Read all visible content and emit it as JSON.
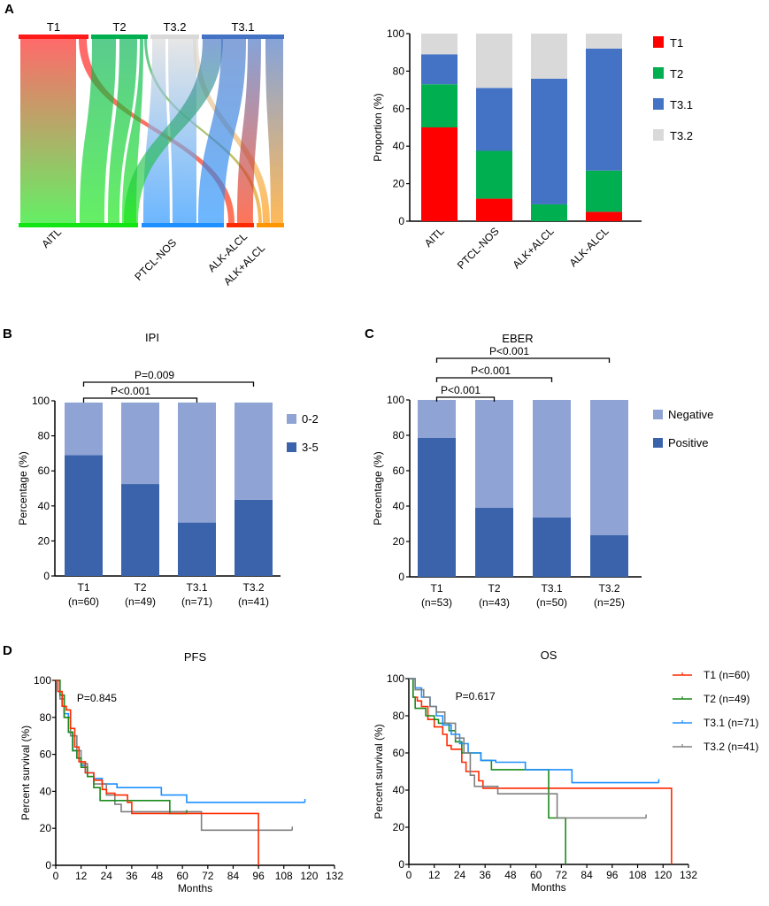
{
  "panel_labels": [
    "A",
    "B",
    "C",
    "D"
  ],
  "chart_data": [
    {
      "id": "sankey",
      "type": "sankey",
      "panel": "A",
      "top_nodes": [
        {
          "name": "T1",
          "color": "#ff1a1a"
        },
        {
          "name": "T2",
          "color": "#00b050"
        },
        {
          "name": "T3.2",
          "color": "#d9d9d9"
        },
        {
          "name": "T3.1",
          "color": "#4472c4"
        }
      ],
      "bottom_nodes": [
        {
          "name": "AITL",
          "color": "#12e612"
        },
        {
          "name": "PTCL-NOS",
          "color": "#1e90ff"
        },
        {
          "name": "ALK-ALCL",
          "color": "#ff2a00"
        },
        {
          "name": "ALK+ALCL",
          "color": "#ff9500"
        }
      ],
      "bottom_labels": [
        "AITL",
        "PTCL-NOS",
        "ALK-ALCL",
        "ALK+ALCL"
      ]
    },
    {
      "id": "proportion",
      "type": "bar",
      "stacked": true,
      "panel": "A",
      "categories": [
        "AITL",
        "PTCL-NOS",
        "ALK+ALCL",
        "ALK-ALCL"
      ],
      "series": [
        {
          "name": "T1",
          "color": "#ff0000",
          "values": [
            50,
            12,
            0,
            5
          ]
        },
        {
          "name": "T2",
          "color": "#00b050",
          "values": [
            23,
            25.5,
            9,
            22
          ]
        },
        {
          "name": "T3.1",
          "color": "#4472c4",
          "values": [
            16,
            33.5,
            67,
            65
          ]
        },
        {
          "name": "T3.2",
          "color": "#d9d9d9",
          "values": [
            11,
            29,
            24,
            8
          ]
        }
      ],
      "ylabel": "Proportion (%)",
      "ylim": [
        0,
        100
      ],
      "yticks": [
        "0",
        "20",
        "40",
        "60",
        "80",
        "100"
      ],
      "legend": [
        "T1",
        "T2",
        "T3.1",
        "T3.2"
      ],
      "legend_position": "right"
    },
    {
      "id": "ipi",
      "type": "bar",
      "stacked": true,
      "panel": "B",
      "title": "IPI",
      "categories": [
        "T1",
        "T2",
        "T3.1",
        "T3.2"
      ],
      "category_n": [
        "(n=60)",
        "(n=49)",
        "(n=71)",
        "(n=41)"
      ],
      "series": [
        {
          "name": "3-5",
          "color": "#3a63ab",
          "values": [
            69,
            52.5,
            30.5,
            43.5
          ]
        },
        {
          "name": "0-2",
          "color": "#8fa3d4",
          "values": [
            30,
            46.5,
            68.5,
            55.5
          ]
        }
      ],
      "ylabel": "Percentage (%)",
      "ylim": [
        0,
        100
      ],
      "yticks": [
        "0",
        "20",
        "40",
        "60",
        "80",
        "100"
      ],
      "legend": [
        "0-2",
        "3-5"
      ],
      "legend_position": "right",
      "annotations": [
        {
          "text": "P<0.001",
          "from": 0,
          "to": 2,
          "level": 1
        },
        {
          "text": "P=0.009",
          "from": 0,
          "to": 3,
          "level": 2
        }
      ]
    },
    {
      "id": "eber",
      "type": "bar",
      "stacked": true,
      "panel": "C",
      "title": "EBER",
      "categories": [
        "T1",
        "T2",
        "T3.1",
        "T3.2"
      ],
      "category_n": [
        "(n=53)",
        "(n=43)",
        "(n=50)",
        "(n=25)"
      ],
      "series": [
        {
          "name": "Positive",
          "color": "#3a63ab",
          "values": [
            78.5,
            39,
            33.5,
            23.5
          ]
        },
        {
          "name": "Negative",
          "color": "#8fa3d4",
          "values": [
            21.5,
            61,
            66.5,
            76.5
          ]
        }
      ],
      "ylabel": "Percentage (%)",
      "ylim": [
        0,
        100
      ],
      "yticks": [
        "0",
        "20",
        "40",
        "60",
        "80",
        "100"
      ],
      "legend": [
        "Negative",
        "Positive"
      ],
      "legend_position": "right",
      "annotations": [
        {
          "text": "P<0.001",
          "from": 0,
          "to": 1,
          "level": 1
        },
        {
          "text": "P<0.001",
          "from": 0,
          "to": 2,
          "level": 2
        },
        {
          "text": "P<0.001",
          "from": 0,
          "to": 3,
          "level": 3
        }
      ]
    },
    {
      "id": "pfs",
      "type": "line",
      "step": true,
      "panel": "D",
      "title": "PFS",
      "pvalue": "P=0.845",
      "xlabel": "Months",
      "ylabel": "Percent survival (%)",
      "xlim": [
        0,
        132
      ],
      "ylim": [
        0,
        100
      ],
      "xticks": [
        "0",
        "12",
        "24",
        "36",
        "48",
        "60",
        "72",
        "84",
        "96",
        "108",
        "120",
        "132"
      ],
      "yticks": [
        "0",
        "20",
        "40",
        "60",
        "80",
        "100"
      ],
      "series": [
        {
          "name": "T3.1 (n=71)",
          "color": "#1e90ff",
          "points": [
            [
              0,
              100
            ],
            [
              2,
              92
            ],
            [
              4,
              82
            ],
            [
              6,
              72
            ],
            [
              8,
              62
            ],
            [
              10,
              58
            ],
            [
              12,
              54
            ],
            [
              14,
              50
            ],
            [
              18,
              47
            ],
            [
              22,
              44
            ],
            [
              29,
              42
            ],
            [
              50,
              38
            ],
            [
              62,
              34
            ],
            [
              118,
              34
            ]
          ]
        },
        {
          "name": "T3.2 (n=41)",
          "color": "#808080",
          "points": [
            [
              0,
              100
            ],
            [
              2,
              90
            ],
            [
              4,
              80
            ],
            [
              7,
              70
            ],
            [
              10,
              62
            ],
            [
              12,
              55
            ],
            [
              15,
              48
            ],
            [
              18,
              44
            ],
            [
              24,
              38
            ],
            [
              28,
              33
            ],
            [
              31,
              29
            ],
            [
              69,
              19
            ],
            [
              112,
              19
            ]
          ]
        },
        {
          "name": "T2 (n=49)",
          "color": "#1a8a1a",
          "points": [
            [
              0,
              100
            ],
            [
              2,
              92
            ],
            [
              4,
              80
            ],
            [
              6,
              72
            ],
            [
              8,
              62
            ],
            [
              10,
              58
            ],
            [
              12,
              53
            ],
            [
              15,
              48
            ],
            [
              18,
              42
            ],
            [
              21,
              35
            ],
            [
              54,
              28
            ],
            [
              62,
              28
            ]
          ]
        },
        {
          "name": "T1 (n=60)",
          "color": "#ff2a00",
          "points": [
            [
              0,
              100
            ],
            [
              1,
              94
            ],
            [
              3,
              86
            ],
            [
              5,
              84
            ],
            [
              7,
              74
            ],
            [
              9,
              64
            ],
            [
              11,
              56
            ],
            [
              14,
              50
            ],
            [
              18,
              46
            ],
            [
              22,
              41
            ],
            [
              24,
              39
            ],
            [
              28,
              38
            ],
            [
              34,
              34
            ],
            [
              36,
              28
            ],
            [
              96,
              28
            ],
            [
              96,
              0
            ]
          ]
        }
      ]
    },
    {
      "id": "os",
      "type": "line",
      "step": true,
      "panel": "D",
      "title": "OS",
      "pvalue": "P=0.617",
      "xlabel": "Months",
      "ylabel": "Percent survival (%)",
      "xlim": [
        0,
        132
      ],
      "ylim": [
        0,
        100
      ],
      "xticks": [
        "0",
        "12",
        "24",
        "36",
        "48",
        "60",
        "72",
        "84",
        "96",
        "108",
        "120",
        "132"
      ],
      "yticks": [
        "0",
        "20",
        "40",
        "60",
        "80",
        "100"
      ],
      "legend_position": "right",
      "series": [
        {
          "name": "T1 (n=60)",
          "color": "#ff2a00",
          "points": [
            [
              0,
              100
            ],
            [
              2,
              90
            ],
            [
              4,
              88
            ],
            [
              6,
              85
            ],
            [
              9,
              78
            ],
            [
              12,
              74
            ],
            [
              16,
              70
            ],
            [
              18,
              64
            ],
            [
              20,
              62
            ],
            [
              25,
              55
            ],
            [
              27,
              50
            ],
            [
              33,
              45
            ],
            [
              35,
              41
            ],
            [
              124,
              41
            ],
            [
              124,
              0
            ]
          ]
        },
        {
          "name": "T2 (n=49)",
          "color": "#1a8a1a",
          "points": [
            [
              0,
              100
            ],
            [
              2,
              90
            ],
            [
              3,
              84
            ],
            [
              8,
              80
            ],
            [
              12,
              78
            ],
            [
              14,
              76
            ],
            [
              19,
              72
            ],
            [
              22,
              66
            ],
            [
              25,
              60
            ],
            [
              34,
              56
            ],
            [
              39,
              51
            ],
            [
              66,
              51
            ],
            [
              66,
              25
            ],
            [
              74,
              25
            ],
            [
              74,
              0
            ]
          ]
        },
        {
          "name": "T3.1 (n=71)",
          "color": "#1e90ff",
          "points": [
            [
              0,
              100
            ],
            [
              3,
              95
            ],
            [
              6,
              90
            ],
            [
              10,
              85
            ],
            [
              13,
              80
            ],
            [
              16,
              75
            ],
            [
              20,
              70
            ],
            [
              24,
              65
            ],
            [
              28,
              60
            ],
            [
              34,
              56
            ],
            [
              41,
              55
            ],
            [
              55,
              51
            ],
            [
              77,
              44
            ],
            [
              118,
              44
            ]
          ]
        },
        {
          "name": "T3.2 (n=41)",
          "color": "#808080",
          "points": [
            [
              0,
              100
            ],
            [
              3,
              94
            ],
            [
              7,
              90
            ],
            [
              10,
              85
            ],
            [
              13,
              82
            ],
            [
              17,
              76
            ],
            [
              22,
              68
            ],
            [
              26,
              60
            ],
            [
              29,
              48
            ],
            [
              31,
              42
            ],
            [
              42,
              38
            ],
            [
              70,
              38
            ],
            [
              70,
              25
            ],
            [
              112,
              25
            ]
          ]
        }
      ],
      "legend": [
        "T1 (n=60)",
        "T2 (n=49)",
        "T3.1 (n=71)",
        "T3.2 (n=41)"
      ]
    }
  ]
}
